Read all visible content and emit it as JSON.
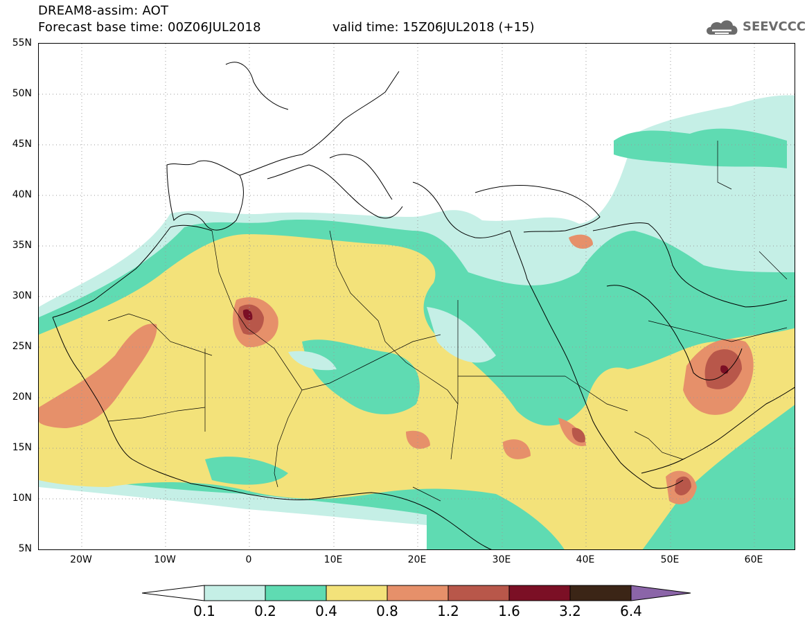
{
  "header": {
    "title_line1": "DREAM8-assim: AOT",
    "title_line2": "Forecast base time: 00Z06JUL2018",
    "valid_time": "valid time: 15Z06JUL2018 (+15)",
    "logo_text": "SEEVCCC"
  },
  "map": {
    "lat_labels": [
      "55N",
      "50N",
      "45N",
      "40N",
      "35N",
      "30N",
      "25N",
      "20N",
      "15N",
      "10N",
      "5N"
    ],
    "lon_labels": [
      "20W",
      "10W",
      "0",
      "10E",
      "20E",
      "30E",
      "40E",
      "50E",
      "60E"
    ],
    "lon_range": [
      -25,
      65
    ],
    "lat_range": [
      5,
      55
    ]
  },
  "legend": {
    "levels": [
      "0.1",
      "0.2",
      "0.4",
      "0.8",
      "1.2",
      "1.6",
      "3.2",
      "6.4"
    ],
    "colors": [
      "#c5efe6",
      "#5fdbb2",
      "#f3e27a",
      "#e6906a",
      "#b8574a",
      "#7b0f25",
      "#3b2516",
      "#8b65a8"
    ],
    "under_color": "#ffffff"
  }
}
